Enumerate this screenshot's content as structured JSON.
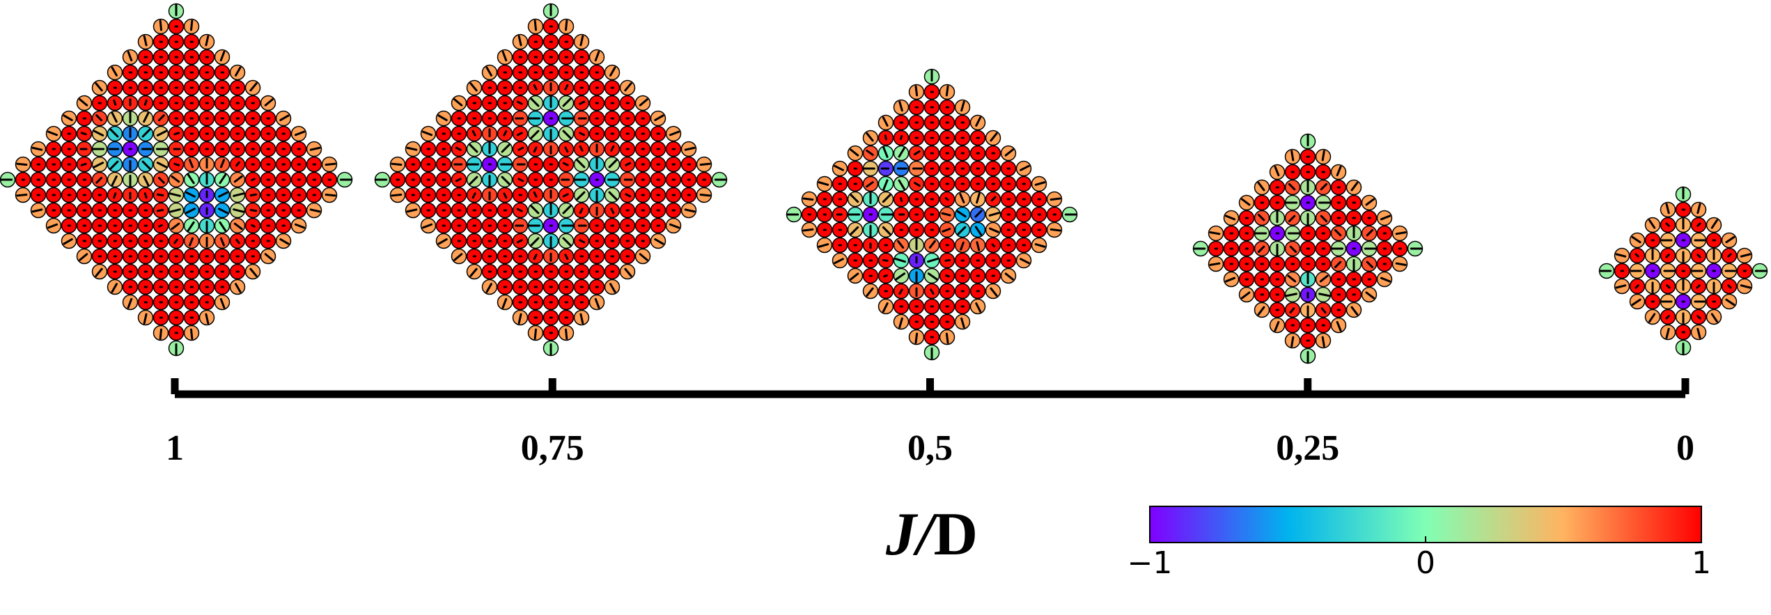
{
  "axis": {
    "label": "J/D",
    "xlim": [
      1,
      0
    ],
    "ticks": [
      {
        "value": 1,
        "label": "1"
      },
      {
        "value": 0.75,
        "label": "0,75"
      },
      {
        "value": 0.5,
        "label": "0,5"
      },
      {
        "value": 0.25,
        "label": "0,25"
      },
      0
    ]
  },
  "colorbar": {
    "lim": [
      -1,
      1
    ],
    "ticks": [
      {
        "value": -1,
        "label": "−1"
      },
      0,
      1
    ]
  }
}
